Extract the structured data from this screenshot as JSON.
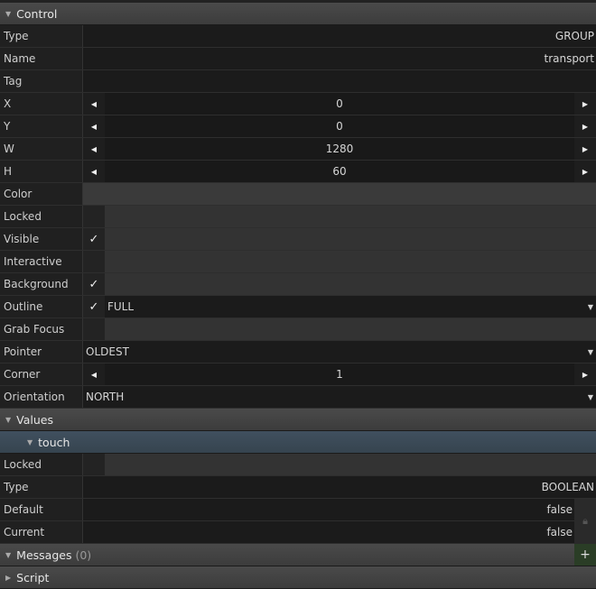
{
  "sections": {
    "control": "Control",
    "values": "Values",
    "touch": "touch",
    "messages": "Messages",
    "messages_count": "(0)",
    "script": "Script"
  },
  "control": {
    "type": {
      "label": "Type",
      "value": "GROUP"
    },
    "name": {
      "label": "Name",
      "value": "transport"
    },
    "tag": {
      "label": "Tag",
      "value": ""
    },
    "x": {
      "label": "X",
      "value": "0"
    },
    "y": {
      "label": "Y",
      "value": "0"
    },
    "w": {
      "label": "W",
      "value": "1280"
    },
    "h": {
      "label": "H",
      "value": "60"
    },
    "color": {
      "label": "Color"
    },
    "locked": {
      "label": "Locked",
      "checked": false
    },
    "visible": {
      "label": "Visible",
      "checked": true,
      "mark": "✓"
    },
    "interactive": {
      "label": "Interactive",
      "checked": false
    },
    "background": {
      "label": "Background",
      "checked": true,
      "mark": "✓"
    },
    "outline": {
      "label": "Outline",
      "checked": true,
      "mark": "✓",
      "value": "FULL"
    },
    "grab_focus": {
      "label": "Grab Focus",
      "checked": false
    },
    "pointer": {
      "label": "Pointer",
      "value": "OLDEST"
    },
    "corner": {
      "label": "Corner",
      "value": "1"
    },
    "orientation": {
      "label": "Orientation",
      "value": "NORTH"
    }
  },
  "touch": {
    "locked": {
      "label": "Locked",
      "checked": false
    },
    "type": {
      "label": "Type",
      "value": "BOOLEAN"
    },
    "default": {
      "label": "Default",
      "value": "false"
    },
    "current": {
      "label": "Current",
      "value": "false"
    }
  },
  "icons": {
    "collapse": "triangle-down-icon",
    "expand": "triangle-right-icon",
    "dec": "arrow-left-icon",
    "inc": "arrow-right-icon",
    "lock": "lock-icon",
    "add": "plus-icon"
  }
}
